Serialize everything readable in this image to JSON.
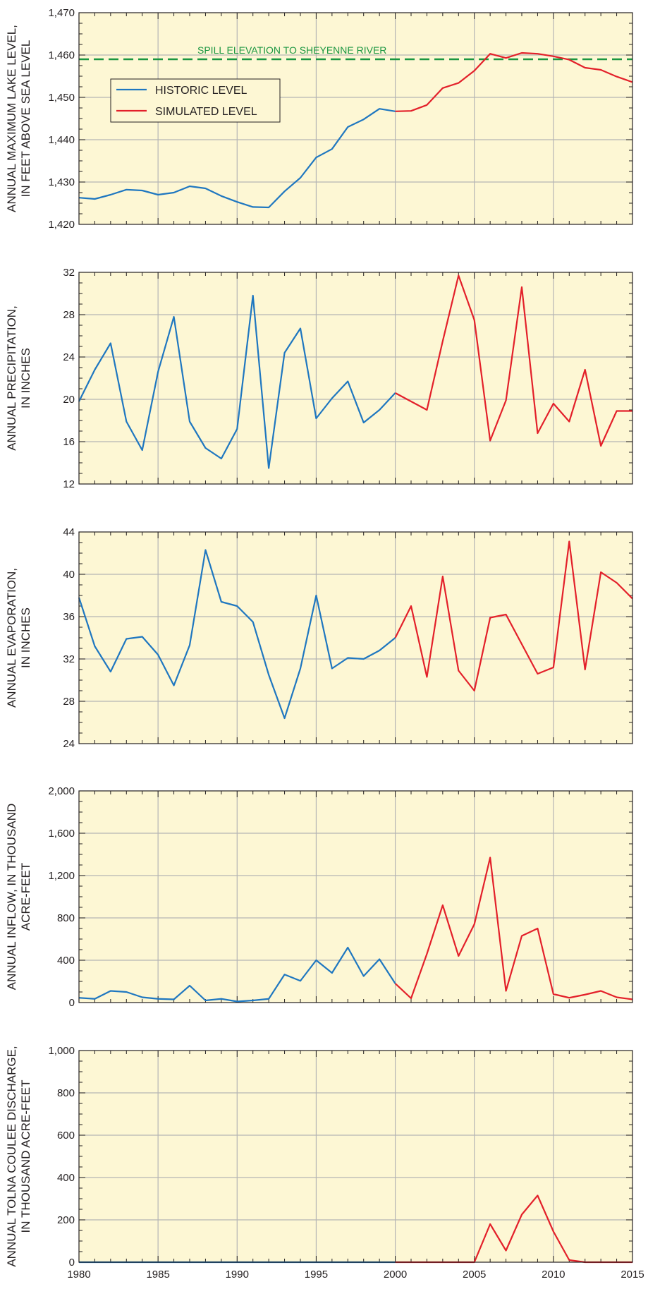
{
  "colors": {
    "panel_fill": "#fdf7d4",
    "grid": "#b5b5b5",
    "frame": "#231f20",
    "historic": "#1f77c0",
    "simulated": "#e3202a",
    "spill_line": "#1a9641"
  },
  "legend": {
    "historic_label": "HISTORIC LEVEL",
    "simulated_label": "SIMULATED LEVEL"
  },
  "chart_data": [
    {
      "type": "line",
      "ylabel": [
        "ANNUAL MAXIMUM LAKE LEVEL,",
        "IN FEET ABOVE SEA LEVEL"
      ],
      "xlim": [
        1980,
        2015
      ],
      "ylim": [
        1420,
        1470
      ],
      "yticks": [
        1420,
        1430,
        1440,
        1450,
        1460,
        1470
      ],
      "ytick_labels": [
        "1,420",
        "1,430",
        "1,440",
        "1,450",
        "1,460",
        "1,470"
      ],
      "reference_line": {
        "y": 1459,
        "label": "SPILL ELEVATION TO SHEYENNE RIVER",
        "style": "dashed"
      },
      "legend_position": "upper-left",
      "series": [
        {
          "name": "HISTORIC LEVEL",
          "color_key": "historic",
          "x": [
            1980,
            1981,
            1982,
            1983,
            1984,
            1985,
            1986,
            1987,
            1988,
            1989,
            1990,
            1991,
            1992,
            1993,
            1994,
            1995,
            1996,
            1997,
            1998,
            1999,
            2000
          ],
          "y": [
            1426.3,
            1426.0,
            1427.0,
            1428.2,
            1428.0,
            1427.0,
            1427.5,
            1429.0,
            1428.5,
            1426.7,
            1425.3,
            1424.1,
            1424.0,
            1427.8,
            1431.0,
            1435.8,
            1437.8,
            1443.0,
            1444.8,
            1447.3,
            1446.7
          ]
        },
        {
          "name": "SIMULATED LEVEL",
          "color_key": "simulated",
          "x": [
            2000,
            2001,
            2002,
            2003,
            2004,
            2005,
            2006,
            2007,
            2008,
            2009,
            2010,
            2011,
            2012,
            2013,
            2014,
            2015
          ],
          "y": [
            1446.7,
            1446.8,
            1448.2,
            1452.2,
            1453.4,
            1456.3,
            1460.3,
            1459.3,
            1460.5,
            1460.3,
            1459.7,
            1458.9,
            1457.0,
            1456.5,
            1454.9,
            1453.6
          ]
        }
      ]
    },
    {
      "type": "line",
      "ylabel": [
        "ANNUAL PRECIPITATION,",
        "IN INCHES"
      ],
      "xlim": [
        1980,
        2015
      ],
      "ylim": [
        12,
        32
      ],
      "yticks": [
        12,
        16,
        20,
        24,
        28,
        32
      ],
      "ytick_labels": [
        "12",
        "16",
        "20",
        "24",
        "28",
        "32"
      ],
      "series": [
        {
          "color_key": "historic",
          "x": [
            1980,
            1981,
            1982,
            1983,
            1984,
            1985,
            1986,
            1987,
            1988,
            1989,
            1990,
            1991,
            1992,
            1993,
            1994,
            1995,
            1996,
            1997,
            1998,
            1999,
            2000
          ],
          "y": [
            19.8,
            22.8,
            25.3,
            17.9,
            15.2,
            22.6,
            27.8,
            17.9,
            15.4,
            14.4,
            17.2,
            29.8,
            13.5,
            24.4,
            26.7,
            18.2,
            20.1,
            21.7,
            17.8,
            19.0,
            20.6
          ]
        },
        {
          "color_key": "simulated",
          "x": [
            2000,
            2001,
            2002,
            2003,
            2004,
            2005,
            2006,
            2007,
            2008,
            2009,
            2010,
            2011,
            2012,
            2013,
            2014,
            2015
          ],
          "y": [
            20.6,
            19.8,
            19.0,
            25.5,
            31.7,
            27.5,
            16.1,
            19.9,
            30.6,
            16.8,
            19.6,
            17.9,
            22.8,
            15.6,
            18.9,
            18.9
          ]
        }
      ]
    },
    {
      "type": "line",
      "ylabel": [
        "ANNUAL EVAPORATION,",
        "IN INCHES"
      ],
      "xlim": [
        1980,
        2015
      ],
      "ylim": [
        24,
        44
      ],
      "yticks": [
        24,
        28,
        32,
        36,
        40,
        44
      ],
      "ytick_labels": [
        "24",
        "28",
        "32",
        "36",
        "40",
        "44"
      ],
      "series": [
        {
          "color_key": "historic",
          "x": [
            1980,
            1981,
            1982,
            1983,
            1984,
            1985,
            1986,
            1987,
            1988,
            1989,
            1990,
            1991,
            1992,
            1993,
            1994,
            1995,
            1996,
            1997,
            1998,
            1999,
            2000
          ],
          "y": [
            37.8,
            33.2,
            30.8,
            33.9,
            34.1,
            32.4,
            29.5,
            33.3,
            42.3,
            37.4,
            37.0,
            35.5,
            30.5,
            26.4,
            31.1,
            38.0,
            31.1,
            32.1,
            32.0,
            32.8,
            34.0
          ]
        },
        {
          "color_key": "simulated",
          "x": [
            2000,
            2001,
            2002,
            2003,
            2004,
            2005,
            2006,
            2007,
            2008,
            2009,
            2010,
            2011,
            2012,
            2013,
            2014,
            2015
          ],
          "y": [
            34.0,
            37.0,
            30.3,
            39.8,
            30.9,
            29.0,
            35.9,
            36.2,
            33.4,
            30.6,
            31.2,
            43.1,
            31.0,
            40.2,
            39.2,
            37.7
          ]
        }
      ]
    },
    {
      "type": "line",
      "ylabel": [
        "ANNUAL INFLOW, IN THOUSAND",
        "ACRE-FEET"
      ],
      "xlim": [
        1980,
        2015
      ],
      "ylim": [
        0,
        2000
      ],
      "yticks": [
        0,
        400,
        800,
        1200,
        1600,
        2000
      ],
      "ytick_labels": [
        "0",
        "400",
        "800",
        "1,200",
        "1,600",
        "2,000"
      ],
      "series": [
        {
          "color_key": "historic",
          "x": [
            1980,
            1981,
            1982,
            1983,
            1984,
            1985,
            1986,
            1987,
            1988,
            1989,
            1990,
            1991,
            1992,
            1993,
            1994,
            1995,
            1996,
            1997,
            1998,
            1999,
            2000
          ],
          "y": [
            45,
            35,
            110,
            100,
            50,
            35,
            30,
            160,
            20,
            35,
            10,
            20,
            35,
            265,
            205,
            400,
            280,
            520,
            250,
            410,
            180
          ]
        },
        {
          "color_key": "simulated",
          "x": [
            2000,
            2001,
            2002,
            2003,
            2004,
            2005,
            2006,
            2007,
            2008,
            2009,
            2010,
            2011,
            2012,
            2013,
            2014,
            2015
          ],
          "y": [
            180,
            40,
            460,
            920,
            440,
            740,
            1370,
            110,
            630,
            700,
            80,
            45,
            75,
            110,
            50,
            30
          ]
        }
      ]
    },
    {
      "type": "line",
      "ylabel": [
        "ANNUAL TOLNA COULEE DISCHARGE,",
        "IN THOUSAND ACRE-FEET"
      ],
      "xlim": [
        1980,
        2015
      ],
      "ylim": [
        0,
        1000
      ],
      "yticks": [
        0,
        200,
        400,
        600,
        800,
        1000
      ],
      "ytick_labels": [
        "0",
        "200",
        "400",
        "600",
        "800",
        "1,000"
      ],
      "xtick_labels": [
        "1980",
        "1985",
        "1990",
        "1995",
        "2000",
        "2005",
        "2010",
        "2015"
      ],
      "series": [
        {
          "color_key": "historic",
          "x": [
            1980,
            1985,
            1990,
            1995,
            2000
          ],
          "y": [
            0,
            0,
            0,
            0,
            0
          ]
        },
        {
          "color_key": "simulated",
          "x": [
            2000,
            2001,
            2002,
            2003,
            2004,
            2005,
            2006,
            2007,
            2008,
            2009,
            2010,
            2011,
            2012,
            2013,
            2014,
            2015
          ],
          "y": [
            0,
            0,
            0,
            0,
            0,
            0,
            180,
            55,
            225,
            315,
            145,
            10,
            0,
            0,
            0,
            0
          ]
        }
      ]
    }
  ]
}
